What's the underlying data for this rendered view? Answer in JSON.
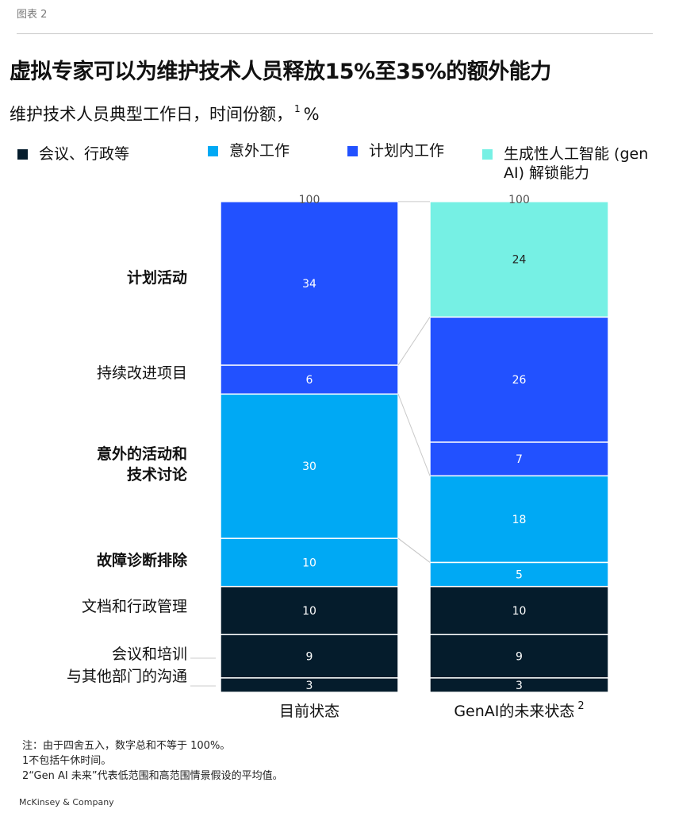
{
  "exhibit_label": "图表 2",
  "title": "虚拟专家可以为维护技术人员释放15%至35%的额外能力",
  "subtitle": "维护技术人员典型工作日，时间份额，",
  "subtitle_sup": "1",
  "subtitle_unit": "%",
  "legend": [
    {
      "label": "会议、行政等",
      "color": "#051c2c"
    },
    {
      "label": "意外工作",
      "color": "#00a9f4"
    },
    {
      "label": "计划内工作",
      "color": "#2251ff"
    },
    {
      "label": "生成性人工智能 (gen AI) 解锁能力",
      "color": "#76f0e4"
    }
  ],
  "chart_data": {
    "type": "bar",
    "stacked": true,
    "categories": [
      "目前状态",
      "GenAI的未来状态"
    ],
    "category_superscripts": [
      "",
      "2"
    ],
    "totals": [
      "100",
      "100"
    ],
    "ylim": [
      0,
      100
    ],
    "row_labels": [
      [
        "计划活动"
      ],
      [
        "持续改进项目"
      ],
      [
        "意外的活动和",
        "技术讨论"
      ],
      [
        "故障诊断排除"
      ],
      [
        "文档和行政管理"
      ],
      [
        "会议和培训"
      ],
      [
        "与其他部门的沟通"
      ]
    ],
    "row_labels_bold": [
      true,
      false,
      true,
      true,
      false,
      false,
      false
    ],
    "stacks": [
      [
        {
          "value": 3,
          "color": "#051c2c"
        },
        {
          "value": 9,
          "color": "#051c2c"
        },
        {
          "value": 10,
          "color": "#051c2c"
        },
        {
          "value": 10,
          "color": "#00a9f4"
        },
        {
          "value": 30,
          "color": "#00a9f4"
        },
        {
          "value": 6,
          "color": "#2251ff"
        },
        {
          "value": 34,
          "color": "#2251ff"
        }
      ],
      [
        {
          "value": 3,
          "color": "#051c2c"
        },
        {
          "value": 9,
          "color": "#051c2c"
        },
        {
          "value": 10,
          "color": "#051c2c"
        },
        {
          "value": 5,
          "color": "#00a9f4"
        },
        {
          "value": 18,
          "color": "#00a9f4"
        },
        {
          "value": 7,
          "color": "#2251ff"
        },
        {
          "value": 26,
          "color": "#2251ff"
        },
        {
          "value": 24,
          "color": "#76f0e4"
        }
      ]
    ]
  },
  "notes": [
    "注：由于四舍五入，数字总和不等于 100%。",
    "1不包括午休时间。",
    "2“Gen AI 未来”代表低范围和高范围情景假设的平均值。"
  ],
  "source": "McKinsey & Company"
}
